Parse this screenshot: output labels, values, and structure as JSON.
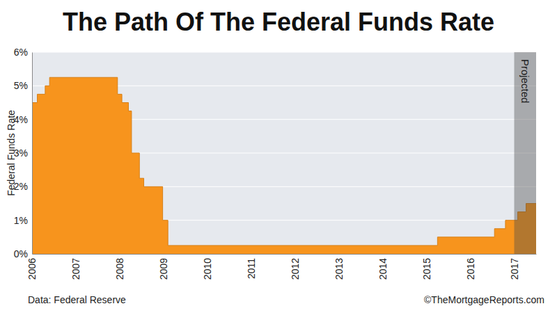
{
  "chart_data": {
    "type": "area",
    "title": "The Path Of The Federal Funds Rate",
    "y_label": "Federal Funds Rate",
    "source": "Data: Federal Reserve",
    "credit": "©TheMortgageReports.com",
    "annotations": [
      {
        "text": "Projected",
        "x_start": 2017,
        "x_end": 2017.5
      }
    ],
    "x": [
      2006,
      2006.12,
      2006.3,
      2006.4,
      2007.95,
      2008.05,
      2008.2,
      2008.27,
      2008.45,
      2008.55,
      2008.98,
      2009.1,
      2015.25,
      2016.55,
      2016.8,
      2017.08,
      2017.27,
      2017.5
    ],
    "series": [
      {
        "color": "#f7941d",
        "line_style": "step",
        "values": [
          4.5,
          4.75,
          5.0,
          5.25,
          4.75,
          4.5,
          4.25,
          3.0,
          2.25,
          2.0,
          1.0,
          0.25,
          0.5,
          0.75,
          1.0,
          1.25,
          1.5,
          1.5
        ]
      }
    ],
    "xlim": [
      2006,
      2017.5
    ],
    "xticks": [
      2006,
      2007,
      2008,
      2009,
      2010,
      2011,
      2012,
      2013,
      2014,
      2015,
      2016,
      2017
    ],
    "ylim": [
      0,
      6
    ],
    "yticks": [
      {
        "value": 0,
        "label": "0%"
      },
      {
        "value": 1,
        "label": "1%"
      },
      {
        "value": 2,
        "label": "2%"
      },
      {
        "value": 3,
        "label": "3%"
      },
      {
        "value": 4,
        "label": "4%"
      },
      {
        "value": 5,
        "label": "5%"
      },
      {
        "value": 6,
        "label": "6%"
      }
    ],
    "grid": true
  }
}
